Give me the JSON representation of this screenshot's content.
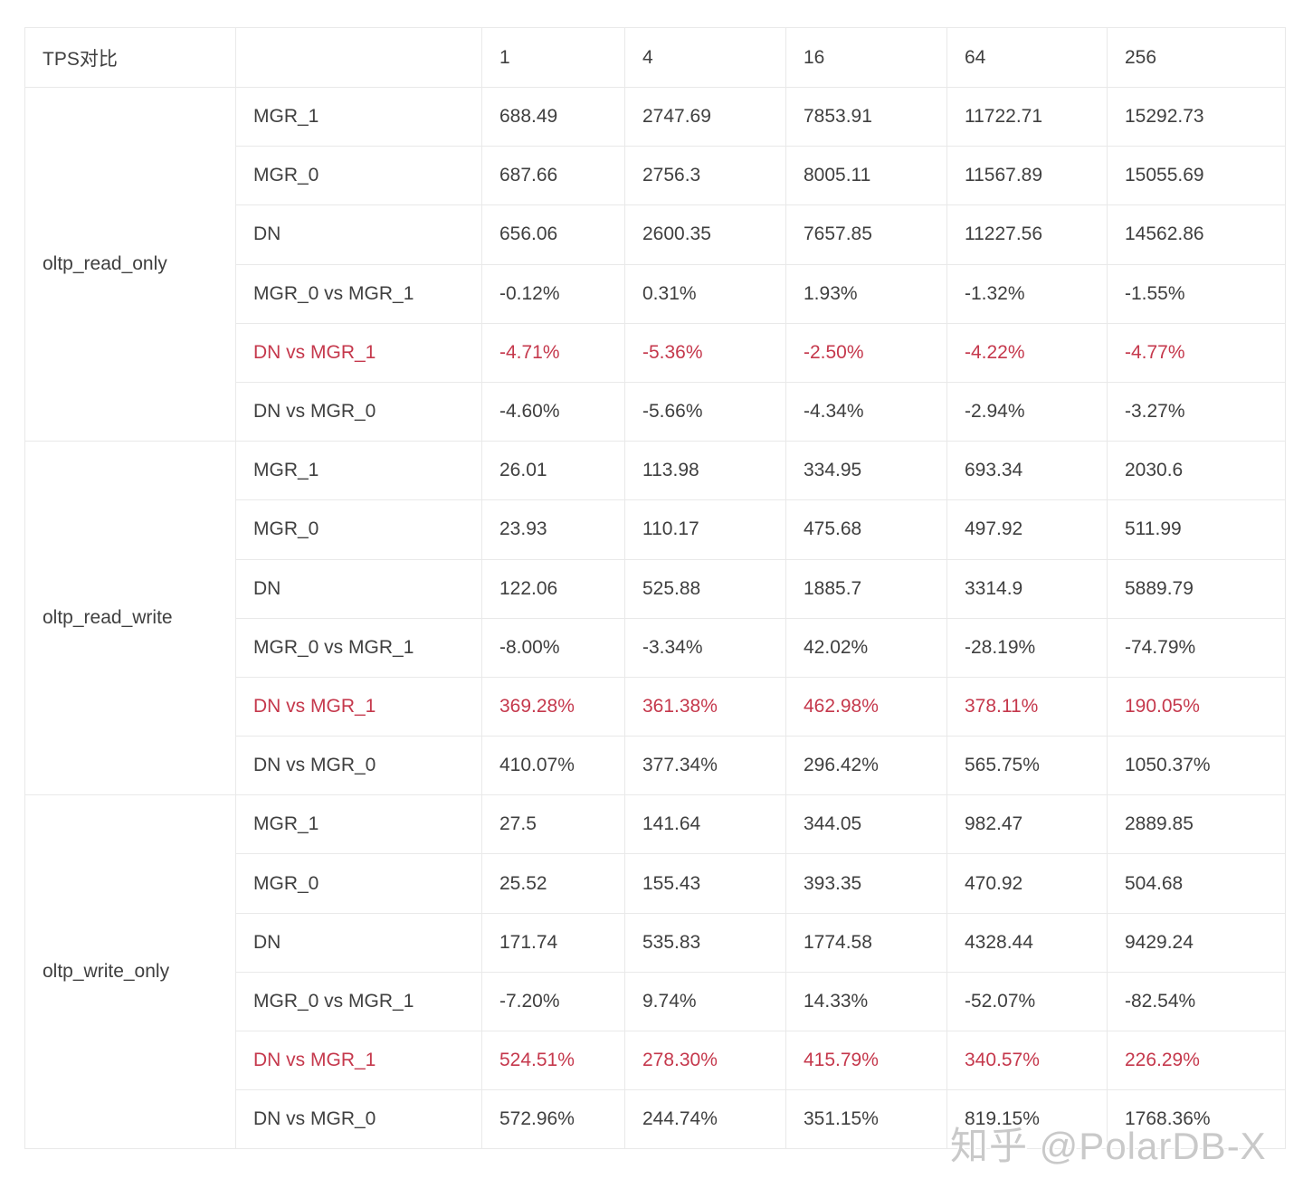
{
  "chart_data": {
    "type": "table",
    "title": "TPS对比",
    "concurrency_levels": [
      "1",
      "4",
      "16",
      "64",
      "256"
    ],
    "groups": [
      {
        "name": "oltp_read_only",
        "rows": [
          {
            "label": "MGR_1",
            "values": [
              "688.49",
              "2747.69",
              "7853.91",
              "11722.71",
              "15292.73"
            ],
            "highlight": false
          },
          {
            "label": "MGR_0",
            "values": [
              "687.66",
              "2756.3",
              "8005.11",
              "11567.89",
              "15055.69"
            ],
            "highlight": false
          },
          {
            "label": "DN",
            "values": [
              "656.06",
              "2600.35",
              "7657.85",
              "11227.56",
              "14562.86"
            ],
            "highlight": false
          },
          {
            "label": "MGR_0 vs MGR_1",
            "values": [
              "-0.12%",
              "0.31%",
              "1.93%",
              "-1.32%",
              "-1.55%"
            ],
            "highlight": false
          },
          {
            "label": "DN vs MGR_1",
            "values": [
              "-4.71%",
              "-5.36%",
              "-2.50%",
              "-4.22%",
              "-4.77%"
            ],
            "highlight": true
          },
          {
            "label": "DN vs MGR_0",
            "values": [
              "-4.60%",
              "-5.66%",
              "-4.34%",
              "-2.94%",
              "-3.27%"
            ],
            "highlight": false
          }
        ]
      },
      {
        "name": "oltp_read_write",
        "rows": [
          {
            "label": "MGR_1",
            "values": [
              "26.01",
              "113.98",
              "334.95",
              "693.34",
              "2030.6"
            ],
            "highlight": false
          },
          {
            "label": "MGR_0",
            "values": [
              "23.93",
              "110.17",
              "475.68",
              "497.92",
              "511.99"
            ],
            "highlight": false
          },
          {
            "label": "DN",
            "values": [
              "122.06",
              "525.88",
              "1885.7",
              "3314.9",
              "5889.79"
            ],
            "highlight": false
          },
          {
            "label": "MGR_0 vs MGR_1",
            "values": [
              "-8.00%",
              "-3.34%",
              "42.02%",
              "-28.19%",
              "-74.79%"
            ],
            "highlight": false
          },
          {
            "label": "DN vs MGR_1",
            "values": [
              "369.28%",
              "361.38%",
              "462.98%",
              "378.11%",
              "190.05%"
            ],
            "highlight": true
          },
          {
            "label": "DN vs MGR_0",
            "values": [
              "410.07%",
              "377.34%",
              "296.42%",
              "565.75%",
              "1050.37%"
            ],
            "highlight": false
          }
        ]
      },
      {
        "name": "oltp_write_only",
        "rows": [
          {
            "label": "MGR_1",
            "values": [
              "27.5",
              "141.64",
              "344.05",
              "982.47",
              "2889.85"
            ],
            "highlight": false
          },
          {
            "label": "MGR_0",
            "values": [
              "25.52",
              "155.43",
              "393.35",
              "470.92",
              "504.68"
            ],
            "highlight": false
          },
          {
            "label": "DN",
            "values": [
              "171.74",
              "535.83",
              "1774.58",
              "4328.44",
              "9429.24"
            ],
            "highlight": false
          },
          {
            "label": "MGR_0 vs MGR_1",
            "values": [
              "-7.20%",
              "9.74%",
              "14.33%",
              "-52.07%",
              "-82.54%"
            ],
            "highlight": false
          },
          {
            "label": "DN vs MGR_1",
            "values": [
              "524.51%",
              "278.30%",
              "415.79%",
              "340.57%",
              "226.29%"
            ],
            "highlight": true
          },
          {
            "label": "DN vs MGR_0",
            "values": [
              "572.96%",
              "244.74%",
              "351.15%",
              "819.15%",
              "1768.36%"
            ],
            "highlight": false
          }
        ]
      }
    ]
  },
  "watermark": {
    "text": "知乎 @PolarDB-X"
  },
  "colors": {
    "highlight_red": "#c5384c",
    "text": "#3f3f3f",
    "border": "#e9e9e9",
    "watermark": "#c9c9c9"
  }
}
